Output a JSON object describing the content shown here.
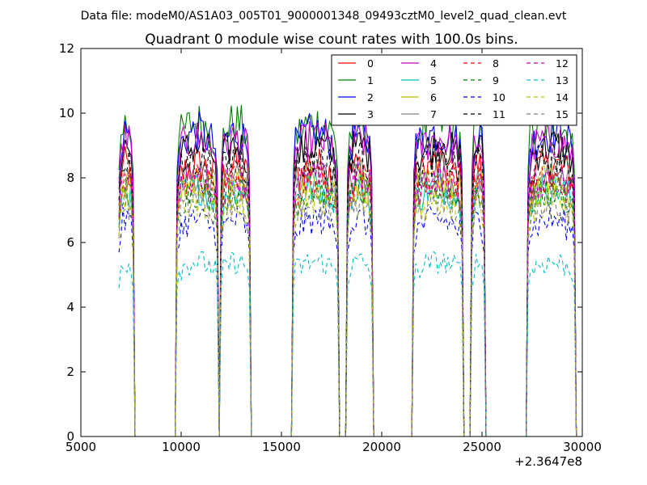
{
  "chart_data": {
    "type": "line",
    "suptitle": "Data file: modeM0/AS1A03_005T01_9000001348_09493cztM0_level2_quad_clean.evt",
    "title": "Quadrant 0 module wise count rates with 100.0s bins.",
    "xlabel": "",
    "ylabel": "",
    "x_offset_label": "+2.3647e8",
    "xlim": [
      5000,
      30000
    ],
    "ylim": [
      0,
      12
    ],
    "x_ticks": [
      "5000",
      "10000",
      "15000",
      "20000",
      "25000",
      "30000"
    ],
    "y_ticks": [
      "0",
      "2",
      "4",
      "6",
      "8",
      "10",
      "12"
    ],
    "legend_position": "top-right",
    "legend_columns": 4,
    "good_time_intervals": [
      [
        6900,
        7600
      ],
      [
        9800,
        11800
      ],
      [
        12000,
        13400
      ],
      [
        15600,
        17800
      ],
      [
        18300,
        19500
      ],
      [
        21600,
        24000
      ],
      [
        24500,
        25100
      ],
      [
        27300,
        29600
      ]
    ],
    "series": [
      {
        "name": "0",
        "color": "#ff0000",
        "dash": "solid",
        "level": 8.4
      },
      {
        "name": "1",
        "color": "#008000",
        "dash": "solid",
        "level": 9.7
      },
      {
        "name": "2",
        "color": "#0000ff",
        "dash": "solid",
        "level": 9.4
      },
      {
        "name": "3",
        "color": "#000000",
        "dash": "solid",
        "level": 9.0
      },
      {
        "name": "4",
        "color": "#bf00bf",
        "dash": "solid",
        "level": 9.2
      },
      {
        "name": "5",
        "color": "#00bfbf",
        "dash": "solid",
        "level": 7.7
      },
      {
        "name": "6",
        "color": "#bfbf00",
        "dash": "solid",
        "level": 7.9
      },
      {
        "name": "7",
        "color": "#808080",
        "dash": "solid",
        "level": 8.1
      },
      {
        "name": "8",
        "color": "#ff0000",
        "dash": "dashed",
        "level": 7.9
      },
      {
        "name": "9",
        "color": "#008000",
        "dash": "dashed",
        "level": 7.6
      },
      {
        "name": "10",
        "color": "#0000ff",
        "dash": "dashed",
        "level": 6.7
      },
      {
        "name": "11",
        "color": "#000000",
        "dash": "dashed",
        "level": 8.6
      },
      {
        "name": "12",
        "color": "#bf00bf",
        "dash": "dashed",
        "level": 8.0
      },
      {
        "name": "13",
        "color": "#00bfbf",
        "dash": "dashed",
        "level": 5.4
      },
      {
        "name": "14",
        "color": "#bfbf00",
        "dash": "dashed",
        "level": 7.3
      },
      {
        "name": "15",
        "color": "#808080",
        "dash": "dashed",
        "level": 7.2
      }
    ]
  }
}
